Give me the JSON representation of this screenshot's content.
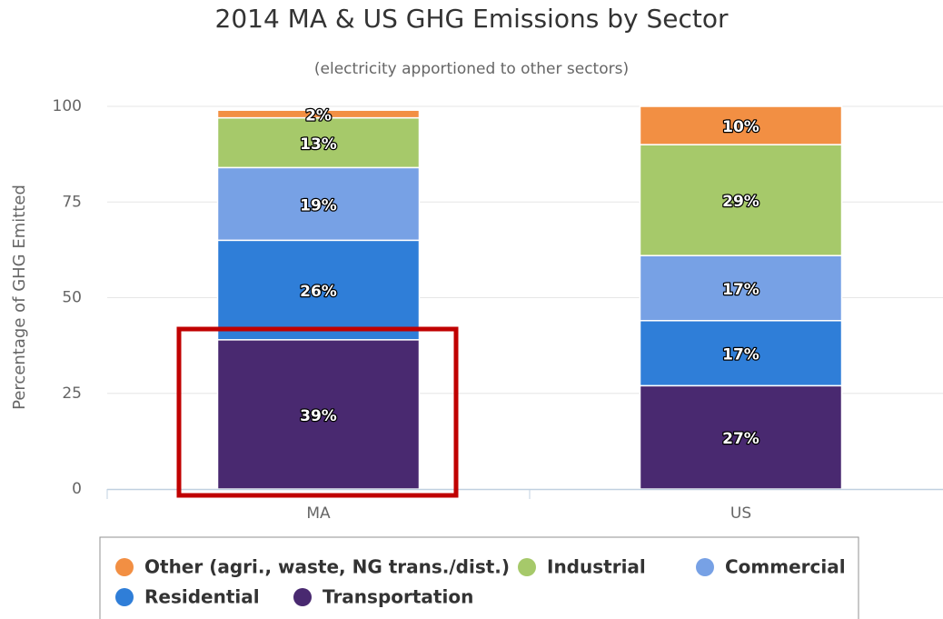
{
  "chart_data": {
    "type": "stacked_bar",
    "title": "2014 MA & US GHG Emissions by Sector",
    "subtitle": "(electricity apportioned to other sectors)",
    "y_label": "Percentage of GHG Emitted",
    "categories": [
      "MA",
      "US"
    ],
    "series": [
      {
        "name": "Other (agri., waste, NG trans./dist.)",
        "color": "#f28f43",
        "values": [
          2,
          10
        ],
        "value_labels": [
          "2%",
          "10%"
        ]
      },
      {
        "name": "Industrial",
        "color": "#a6c96a",
        "values": [
          13,
          29
        ],
        "value_labels": [
          "13%",
          "29%"
        ]
      },
      {
        "name": "Commercial",
        "color": "#77a1e5",
        "values": [
          19,
          17
        ],
        "value_labels": [
          "19%",
          "17%"
        ]
      },
      {
        "name": "Residential",
        "color": "#2f7ed8",
        "values": [
          26,
          17
        ],
        "value_labels": [
          "26%",
          "17%"
        ]
      },
      {
        "name": "Transportation",
        "color": "#492970",
        "values": [
          39,
          27
        ],
        "value_labels": [
          "39%",
          "27%"
        ]
      }
    ],
    "ylim": [
      0,
      100
    ],
    "yticks": [
      0,
      25,
      50,
      75,
      100
    ],
    "grid": true
  }
}
